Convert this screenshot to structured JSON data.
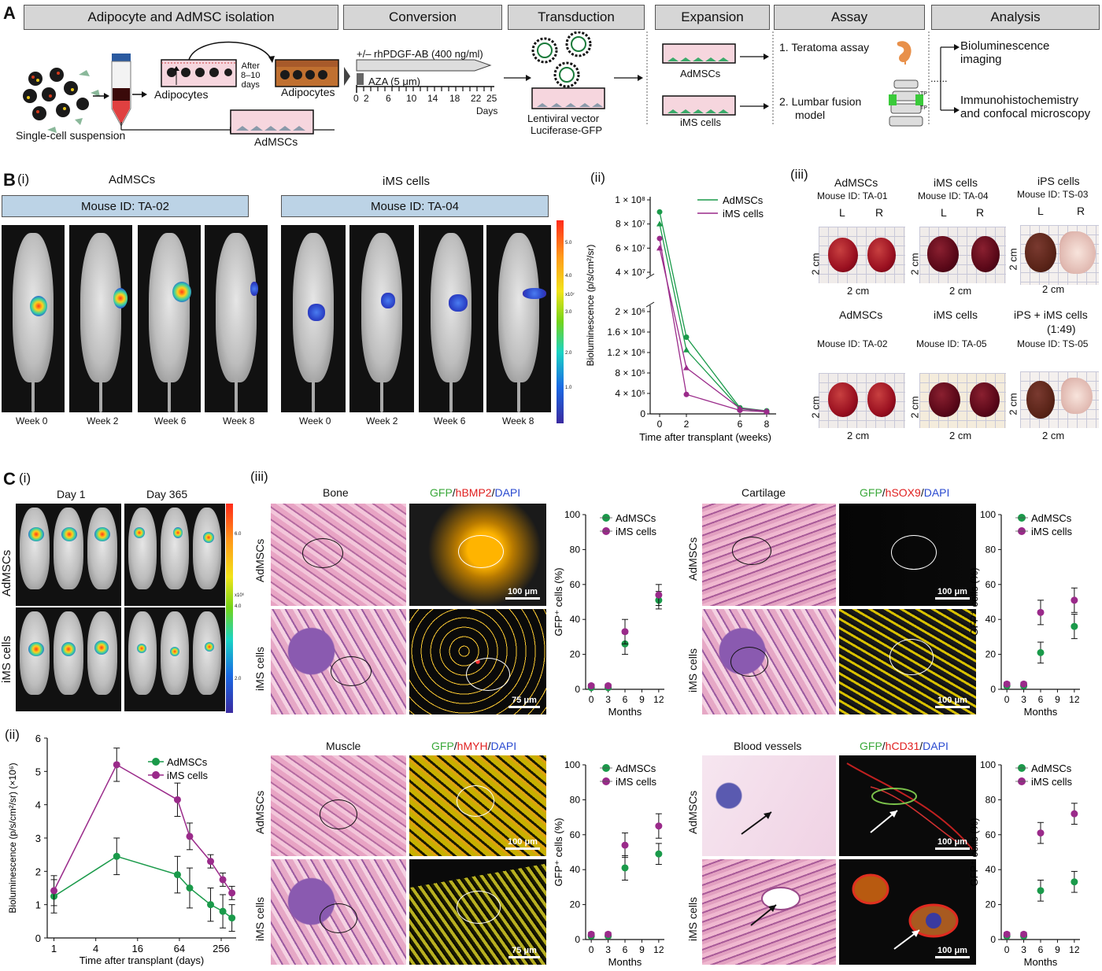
{
  "panelA": {
    "letter": "A",
    "stages": [
      "Adipocyte and AdMSC isolation",
      "Conversion",
      "Transduction",
      "Expansion",
      "Assay",
      "Analysis"
    ],
    "single_cell": "Single-cell suspension",
    "adipocytes_label": "Adipocytes",
    "adipocytes_label2": "Adipocytes",
    "after_days": "After\n8–10\ndays",
    "admscs_label": "AdMSCs",
    "pdgf": "+/– rhPDGF-AB (400 ng/ml)",
    "aza": "AZA (5 μm)",
    "timeline_ticks": [
      "0",
      "2",
      "6",
      "10",
      "14",
      "18",
      "22",
      "25"
    ],
    "days": "Days",
    "lentiviral": "Lentiviral vector",
    "luciferase": "Luciferase-GFP",
    "exp_admscs": "AdMSCs",
    "exp_ims": "iMS cells",
    "assay1": "1. Teratoma assay",
    "assay2": "2. Lumbar fusion",
    "assay2b": "model",
    "tp": "TP",
    "analysis1": "Bioluminescence",
    "analysis1b": "imaging",
    "analysis2": "Immunohistochemistry",
    "analysis2b": "and confocal microscopy",
    "dots": "......"
  },
  "panelB": {
    "letter": "B",
    "sub_i": "(i)",
    "sub_ii": "(ii)",
    "sub_iii": "(iii)",
    "group1": "AdMSCs",
    "group2": "iMS cells",
    "mouse1": "Mouse ID: TA-02",
    "mouse2": "Mouse ID: TA-04",
    "weeks": [
      "Week 0",
      "Week 2",
      "Week 6",
      "Week 8",
      "Week 0",
      "Week 2",
      "Week 6",
      "Week 8"
    ],
    "colorbar_ticks": [
      "5.0",
      "4.0",
      "3.0",
      "2.0",
      "1.0"
    ],
    "colorbar_unit": "x10⁷",
    "kidneys": [
      {
        "title": "AdMSCs",
        "mouse": "Mouse ID: TA-01",
        "L": "L",
        "R": "R",
        "scale": "2 cm"
      },
      {
        "title": "iMS cells",
        "mouse": "Mouse ID: TA-04",
        "L": "L",
        "R": "R",
        "scale": "2 cm"
      },
      {
        "title": "iPS cells",
        "mouse": "Mouse ID: TS-03",
        "L": "L",
        "R": "R",
        "scale": "2 cm"
      },
      {
        "title": "AdMSCs",
        "mouse": "Mouse ID: TA-02",
        "scale": "2 cm"
      },
      {
        "title": "iMS cells",
        "mouse": "Mouse ID: TA-05",
        "scale": "2 cm"
      },
      {
        "title": "iPS + iMS cells",
        "title2": "(1:49)",
        "mouse": "Mouse ID: TS-05",
        "scale": "2 cm"
      }
    ]
  },
  "panelC": {
    "letter": "C",
    "sub_i": "(i)",
    "sub_ii": "(ii)",
    "sub_iii": "(iii)",
    "day1": "Day 1",
    "day365": "Day 365",
    "row1": "AdMSCs",
    "row2": "iMS cells",
    "colorbar_ticks": [
      "6.0",
      "4.0",
      "2.0"
    ],
    "colorbar_unit": "x10⁶",
    "tissues": [
      {
        "name": "Bone",
        "stain_g": "GFP",
        "stain_r": "hBMP2",
        "stain_b": "DAPI",
        "scale_top": "100 μm",
        "scale_bot": "75 μm"
      },
      {
        "name": "Cartilage",
        "stain_g": "GFP",
        "stain_r": "hSOX9",
        "stain_b": "DAPI",
        "scale_top": "100 μm",
        "scale_bot": "100 μm"
      },
      {
        "name": "Muscle",
        "stain_g": "GFP",
        "stain_r": "hMYH",
        "stain_b": "DAPI",
        "scale_top": "100 μm",
        "scale_bot": "75 μm"
      },
      {
        "name": "Blood vessels",
        "stain_g": "GFP",
        "stain_r": "hCD31",
        "stain_b": "DAPI",
        "scale_top": "100 μm",
        "scale_bot": "100 μm"
      }
    ],
    "row_labels": [
      "AdMSCs",
      "iMS cells"
    ]
  },
  "chart_data": [
    {
      "id": "B-ii",
      "type": "line",
      "xlabel": "Time after transplant (weeks)",
      "ylabel": "Bioluminescence (p/s/cm²/sr)",
      "x": [
        0,
        2,
        6,
        8
      ],
      "x_ticks": [
        "0",
        "2",
        "6",
        "8"
      ],
      "y_ticks_upper": [
        "1 × 10⁸",
        "8 × 10⁷",
        "6 × 10⁷",
        "4 × 10⁷"
      ],
      "y_ticks_lower": [
        "2 × 10⁶",
        "1.6 × 10⁶",
        "1.2 × 10⁶",
        "8 × 10⁵",
        "4 × 10⁵",
        "0"
      ],
      "broken_axis": true,
      "series": [
        {
          "name": "AdMSCs",
          "color": "#1a9a4a",
          "lines": [
            [
              90000000,
              1500000,
              120000,
              60000
            ],
            [
              80000000,
              1250000,
              100000,
              50000
            ]
          ]
        },
        {
          "name": "iMS cells",
          "color": "#9a2a8a",
          "lines": [
            [
              68000000,
              380000,
              70000,
              40000
            ],
            [
              60000000,
              900000,
              110000,
              55000
            ]
          ]
        }
      ]
    },
    {
      "id": "C-ii",
      "type": "line",
      "xlabel": "Time after transplant (days)",
      "ylabel": "Bioluminescence (p/s/cm²/sr) (×10⁶)",
      "x_scale": "log",
      "x_ticks": [
        "1",
        "4",
        "16",
        "64",
        "256"
      ],
      "y_ticks": [
        "0",
        "1",
        "2",
        "3",
        "4",
        "5",
        "6"
      ],
      "ylim": [
        0,
        6
      ],
      "x": [
        1,
        8,
        60,
        90,
        180,
        270,
        365
      ],
      "series": [
        {
          "name": "AdMSCs",
          "color": "#1a9a4a",
          "values": [
            1.25,
            2.45,
            1.9,
            1.5,
            1.0,
            0.8,
            0.6
          ],
          "err": [
            0.5,
            0.55,
            0.55,
            0.6,
            0.5,
            0.5,
            0.4
          ]
        },
        {
          "name": "iMS cells",
          "color": "#9a2a8a",
          "values": [
            1.42,
            5.2,
            4.15,
            3.05,
            2.3,
            1.75,
            1.35
          ],
          "err": [
            0.45,
            0.5,
            0.5,
            0.4,
            0.2,
            0.2,
            0.2
          ]
        }
      ]
    },
    {
      "id": "C-iii-bone",
      "type": "scatter",
      "xlabel": "Months",
      "ylabel": "GFP⁺ cells (%)",
      "x_ticks": [
        "0",
        "3",
        "6",
        "9",
        "12"
      ],
      "y_ticks": [
        "0",
        "20",
        "40",
        "60",
        "80",
        "100"
      ],
      "ylim": [
        0,
        100
      ],
      "x": [
        0,
        3,
        6,
        12
      ],
      "series": [
        {
          "name": "AdMSCs",
          "color": "#1a9a4a",
          "values": [
            1,
            1,
            26,
            51
          ],
          "err": [
            1,
            1,
            6,
            5
          ]
        },
        {
          "name": "iMS cells",
          "color": "#9a2a8a",
          "values": [
            2,
            2,
            33,
            54
          ],
          "err": [
            1,
            1,
            7,
            6
          ]
        }
      ]
    },
    {
      "id": "C-iii-cartilage",
      "type": "scatter",
      "xlabel": "Months",
      "ylabel": "GFP⁺ cells (%)",
      "x_ticks": [
        "0",
        "3",
        "6",
        "9",
        "12"
      ],
      "y_ticks": [
        "0",
        "20",
        "40",
        "60",
        "80",
        "100"
      ],
      "ylim": [
        0,
        100
      ],
      "x": [
        0,
        3,
        6,
        12
      ],
      "series": [
        {
          "name": "AdMSCs",
          "color": "#1a9a4a",
          "values": [
            2,
            2,
            21,
            36
          ],
          "err": [
            1,
            1,
            6,
            7
          ]
        },
        {
          "name": "iMS cells",
          "color": "#9a2a8a",
          "values": [
            3,
            3,
            44,
            51
          ],
          "err": [
            1,
            1,
            7,
            7
          ]
        }
      ]
    },
    {
      "id": "C-iii-muscle",
      "type": "scatter",
      "xlabel": "Months",
      "ylabel": "GFP⁺ cells (%)",
      "x_ticks": [
        "0",
        "3",
        "6",
        "9",
        "12"
      ],
      "y_ticks": [
        "0",
        "20",
        "40",
        "60",
        "80",
        "100"
      ],
      "ylim": [
        0,
        100
      ],
      "x": [
        0,
        3,
        6,
        12
      ],
      "series": [
        {
          "name": "AdMSCs",
          "color": "#1a9a4a",
          "values": [
            2,
            2,
            41,
            49
          ],
          "err": [
            1,
            1,
            7,
            6
          ]
        },
        {
          "name": "iMS cells",
          "color": "#9a2a8a",
          "values": [
            3,
            3,
            54,
            65
          ],
          "err": [
            1,
            1,
            7,
            7
          ]
        }
      ]
    },
    {
      "id": "C-iii-vessels",
      "type": "scatter",
      "xlabel": "Months",
      "ylabel": "GFP⁺ cells (%)",
      "x_ticks": [
        "0",
        "3",
        "6",
        "9",
        "12"
      ],
      "y_ticks": [
        "0",
        "20",
        "40",
        "60",
        "80",
        "100"
      ],
      "ylim": [
        0,
        100
      ],
      "x": [
        0,
        3,
        6,
        12
      ],
      "series": [
        {
          "name": "AdMSCs",
          "color": "#1a9a4a",
          "values": [
            2,
            2,
            28,
            33
          ],
          "err": [
            1,
            1,
            6,
            6
          ]
        },
        {
          "name": "iMS cells",
          "color": "#9a2a8a",
          "values": [
            3,
            3,
            61,
            72
          ],
          "err": [
            1,
            1,
            6,
            6
          ]
        }
      ]
    }
  ]
}
